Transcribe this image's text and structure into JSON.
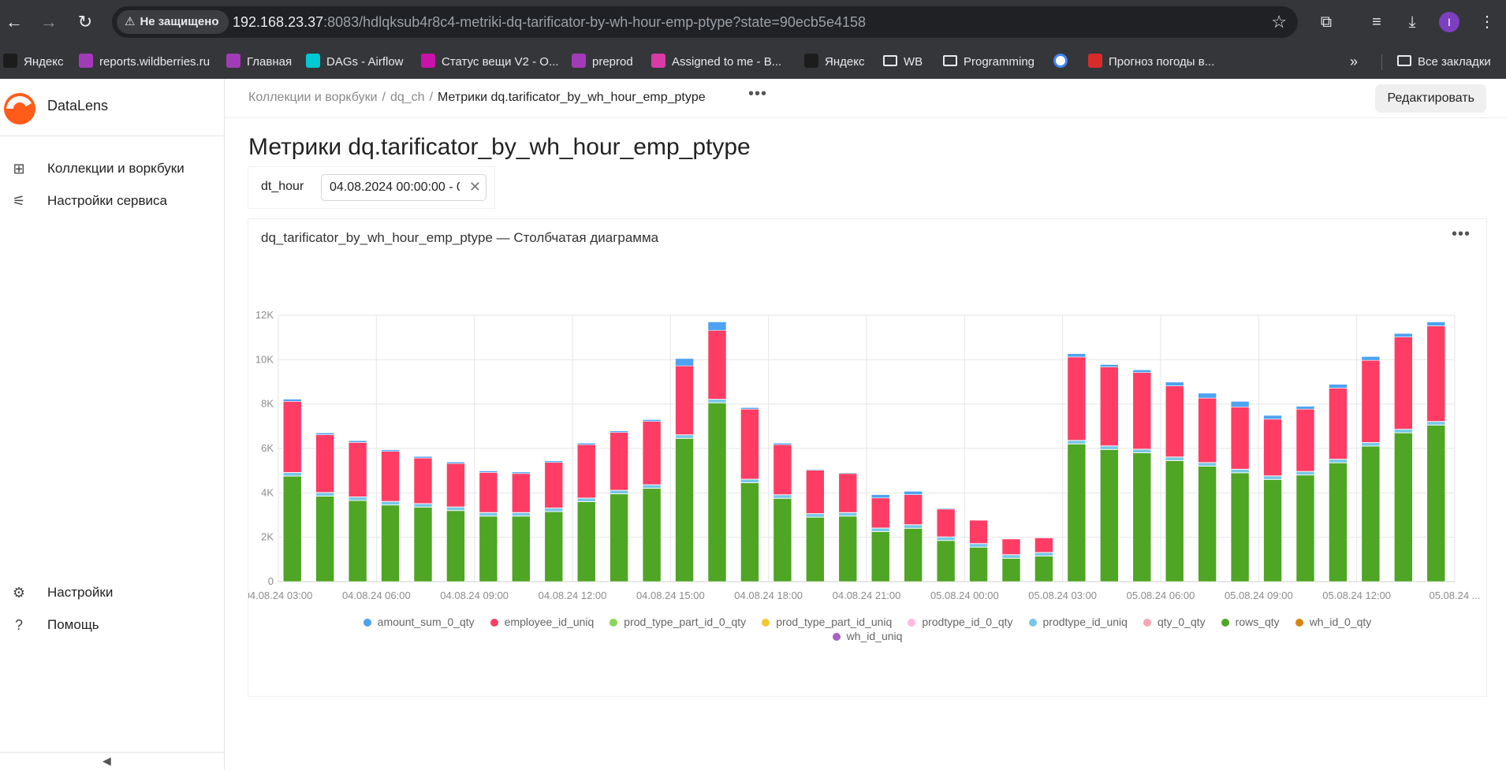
{
  "browser": {
    "security_label": "Не защищено",
    "url_host": "192.168.23.37",
    "url_rest": ":8083/hdlqksub4r8c4-metriki-dq-tarificator-by-wh-hour-emp-ptype?state=90ecb5e4158",
    "profile_initial": "I",
    "bookmarks": [
      {
        "label": "Яндекс",
        "icon": "yandex-icon",
        "color": "#1c1c1c"
      },
      {
        "label": "reports.wildberries.ru",
        "icon": "doc-icon",
        "color": "#a23bb8"
      },
      {
        "label": "Главная",
        "icon": "doc-icon",
        "color": "#a23bb8"
      },
      {
        "label": "DAGs - Airflow",
        "icon": "airflow-icon",
        "color": "#00c7d4"
      },
      {
        "label": "Статус вещи V2 - O...",
        "icon": "wb-icon",
        "color": "#cb11ab"
      },
      {
        "label": "preprod",
        "icon": "doc-icon",
        "color": "#a23bb8"
      },
      {
        "label": "Assigned to me - B...",
        "icon": "youtrack-icon",
        "color": "#d93aa6"
      },
      {
        "label": "Яндекс",
        "icon": "yandex-icon",
        "color": "#1c1c1c"
      },
      {
        "label": "WB",
        "icon": "folder-icon",
        "color": "transparent"
      },
      {
        "label": "Programming",
        "icon": "folder-icon",
        "color": "transparent"
      },
      {
        "label": "",
        "icon": "google-icon",
        "color": "#ffffff"
      },
      {
        "label": "Прогноз погоды в...",
        "icon": "weather-icon",
        "color": "#d92b2b"
      }
    ],
    "all_bookmarks": "Все закладки"
  },
  "app": {
    "name": "DataLens",
    "nav": [
      {
        "label": "Коллекции и воркбуки",
        "icon": "grid-icon"
      },
      {
        "label": "Настройки сервиса",
        "icon": "sliders-icon"
      }
    ],
    "bottom_nav": [
      {
        "label": "Настройки",
        "icon": "gear-icon"
      },
      {
        "label": "Помощь",
        "icon": "help-icon"
      }
    ]
  },
  "breadcrumb": {
    "items": [
      "Коллекции и воркбуки",
      "dq_ch"
    ],
    "current": "Метрики dq.tarificator_by_wh_hour_emp_ptype"
  },
  "edit_label": "Редактировать",
  "page_title": "Метрики dq.tarificator_by_wh_hour_emp_ptype",
  "filter": {
    "label": "dt_hour",
    "value": "04.08.2024 00:00:00 - 0"
  },
  "widget": {
    "title": "dq_tarificator_by_wh_hour_emp_ptype — Столбчатая диаграмма"
  },
  "chart_data": {
    "type": "bar",
    "stacked": true,
    "ylim": [
      0,
      12000
    ],
    "y_ticks": [
      "0",
      "2K",
      "4K",
      "6K",
      "8K",
      "10K",
      "12K"
    ],
    "x_tick_labels": [
      "04.08.24 03:00",
      "04.08.24 06:00",
      "04.08.24 09:00",
      "04.08.24 12:00",
      "04.08.24 15:00",
      "04.08.24 18:00",
      "04.08.24 21:00",
      "05.08.24 00:00",
      "05.08.24 03:00",
      "05.08.24 06:00",
      "05.08.24 09:00",
      "05.08.24 12:00",
      "05.08.24 ..."
    ],
    "grid": true,
    "legend_position": "bottom",
    "categories": [
      "04.08.24 03:00",
      "04.08.24 04:00",
      "04.08.24 05:00",
      "04.08.24 06:00",
      "04.08.24 07:00",
      "04.08.24 08:00",
      "04.08.24 09:00",
      "04.08.24 10:00",
      "04.08.24 11:00",
      "04.08.24 12:00",
      "04.08.24 13:00",
      "04.08.24 14:00",
      "04.08.24 15:00",
      "04.08.24 16:00",
      "04.08.24 17:00",
      "04.08.24 18:00",
      "04.08.24 19:00",
      "04.08.24 20:00",
      "04.08.24 21:00",
      "04.08.24 22:00",
      "04.08.24 23:00",
      "05.08.24 00:00",
      "05.08.24 01:00",
      "05.08.24 02:00",
      "05.08.24 03:00",
      "05.08.24 04:00",
      "05.08.24 05:00",
      "05.08.24 06:00",
      "05.08.24 07:00",
      "05.08.24 08:00",
      "05.08.24 09:00",
      "05.08.24 10:00",
      "05.08.24 11:00",
      "05.08.24 12:00",
      "05.08.24 13:00",
      "05.08.24 14:00"
    ],
    "series": [
      {
        "name": "rows_qty",
        "color": "#4fa524",
        "values": [
          4750,
          3850,
          3650,
          3450,
          3350,
          3200,
          2950,
          2950,
          3150,
          3600,
          3950,
          4200,
          6450,
          8050,
          4450,
          3750,
          2900,
          2950,
          2250,
          2400,
          1850,
          1550,
          1050,
          1150,
          6200,
          5950,
          5800,
          5450,
          5200,
          4900,
          4600,
          4800,
          5350,
          6100,
          6700,
          7050
        ]
      },
      {
        "name": "wh_id_uniq",
        "color": "#a75fc0",
        "values": [
          10,
          10,
          10,
          10,
          10,
          10,
          10,
          10,
          10,
          10,
          10,
          10,
          10,
          10,
          10,
          10,
          10,
          10,
          10,
          10,
          10,
          10,
          10,
          10,
          10,
          10,
          10,
          10,
          10,
          10,
          10,
          10,
          10,
          10,
          10,
          10
        ]
      },
      {
        "name": "prodtype_id_uniq",
        "color": "#76c7e6",
        "values": [
          150,
          150,
          150,
          150,
          150,
          150,
          150,
          150,
          150,
          150,
          150,
          150,
          150,
          150,
          150,
          150,
          150,
          150,
          150,
          150,
          150,
          150,
          150,
          150,
          150,
          150,
          150,
          150,
          150,
          150,
          150,
          150,
          150,
          150,
          150,
          150
        ]
      },
      {
        "name": "prod_type_part_id_uniq",
        "color": "#f5c732",
        "values": [
          10,
          10,
          10,
          10,
          10,
          10,
          10,
          10,
          10,
          10,
          10,
          10,
          10,
          10,
          10,
          10,
          10,
          10,
          10,
          10,
          10,
          10,
          10,
          10,
          10,
          10,
          10,
          10,
          10,
          10,
          10,
          10,
          10,
          10,
          10,
          10
        ]
      },
      {
        "name": "employee_id_uniq",
        "color": "#ff3d64",
        "values": [
          3200,
          2600,
          2450,
          2250,
          2050,
          1950,
          1800,
          1750,
          2050,
          2400,
          2600,
          2850,
          3100,
          3100,
          3150,
          2250,
          1950,
          1750,
          1350,
          1350,
          1250,
          1050,
          700,
          650,
          3750,
          3550,
          3450,
          3200,
          2900,
          2800,
          2550,
          2800,
          3200,
          3700,
          4150,
          4300
        ]
      },
      {
        "name": "amount_sum_0_qty",
        "color": "#4da2f1",
        "values": [
          100,
          80,
          80,
          70,
          70,
          70,
          70,
          70,
          70,
          70,
          70,
          80,
          330,
          380,
          70,
          70,
          40,
          40,
          150,
          150,
          40,
          20,
          0,
          0,
          150,
          110,
          120,
          170,
          220,
          250,
          170,
          130,
          170,
          170,
          160,
          180
        ]
      },
      {
        "name": "prod_type_part_id_0_qty",
        "color": "#8ad554",
        "values": [
          0,
          0,
          0,
          0,
          0,
          0,
          0,
          0,
          0,
          0,
          0,
          0,
          0,
          0,
          0,
          0,
          0,
          0,
          0,
          0,
          0,
          0,
          0,
          0,
          0,
          0,
          0,
          0,
          0,
          0,
          0,
          0,
          0,
          0,
          0,
          0
        ]
      },
      {
        "name": "prodtype_id_0_qty",
        "color": "#ffb9dd",
        "values": [
          0,
          0,
          0,
          0,
          0,
          0,
          0,
          0,
          0,
          0,
          0,
          0,
          0,
          0,
          0,
          0,
          0,
          0,
          0,
          0,
          0,
          0,
          0,
          0,
          0,
          0,
          0,
          0,
          0,
          0,
          0,
          0,
          0,
          0,
          0,
          0
        ]
      },
      {
        "name": "qty_0_qty",
        "color": "#f7a4b4",
        "values": [
          0,
          0,
          0,
          0,
          0,
          0,
          0,
          0,
          0,
          0,
          0,
          0,
          0,
          0,
          0,
          0,
          0,
          0,
          0,
          0,
          0,
          0,
          0,
          0,
          0,
          0,
          0,
          0,
          0,
          0,
          0,
          0,
          0,
          0,
          0,
          0
        ]
      },
      {
        "name": "wh_id_0_qty",
        "color": "#d8840e",
        "values": [
          0,
          0,
          0,
          0,
          0,
          0,
          0,
          0,
          0,
          0,
          0,
          0,
          0,
          0,
          0,
          0,
          0,
          0,
          0,
          0,
          0,
          0,
          0,
          0,
          0,
          0,
          0,
          0,
          0,
          0,
          0,
          0,
          0,
          0,
          0,
          0
        ]
      }
    ],
    "legend": [
      {
        "name": "amount_sum_0_qty",
        "color": "#4da2f1"
      },
      {
        "name": "employee_id_uniq",
        "color": "#ff3d64"
      },
      {
        "name": "prod_type_part_id_0_qty",
        "color": "#8ad554"
      },
      {
        "name": "prod_type_part_id_uniq",
        "color": "#f5c732"
      },
      {
        "name": "prodtype_id_0_qty",
        "color": "#ffb9dd"
      },
      {
        "name": "prodtype_id_uniq",
        "color": "#76c7e6"
      },
      {
        "name": "qty_0_qty",
        "color": "#f7a4b4"
      },
      {
        "name": "rows_qty",
        "color": "#4fa524"
      },
      {
        "name": "wh_id_0_qty",
        "color": "#d8840e"
      },
      {
        "name": "wh_id_uniq",
        "color": "#a75fc0"
      }
    ]
  }
}
